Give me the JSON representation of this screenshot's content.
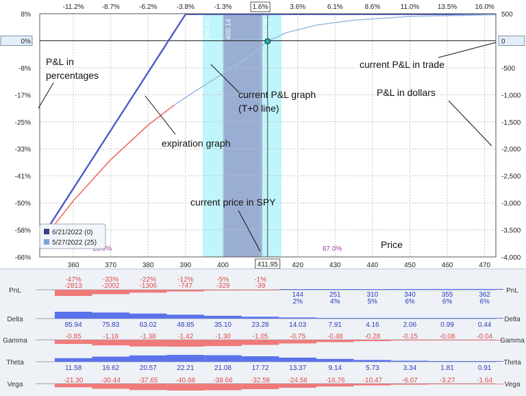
{
  "chart_data": {
    "type": "line",
    "top_axis_ticks": [
      "-11.2%",
      "-8.7%",
      "-6.2%",
      "-3.8%",
      "-1.3%",
      "1.6%",
      "3.6%",
      "6.1%",
      "8.6%",
      "11.0%",
      "13.5%",
      "16.0%"
    ],
    "highlighted_top_tick": "1.6%",
    "xlabel": "Price",
    "x_ticks": [
      360,
      370,
      380,
      390,
      400,
      410,
      420,
      430,
      440,
      450,
      460,
      470
    ],
    "xlim": [
      351,
      473
    ],
    "current_price": 411.95,
    "current_price_label": "411.95",
    "left_axis": {
      "ticks": [
        "8%",
        "0%",
        "-8%",
        "-17%",
        "-25%",
        "-33%",
        "-41%",
        "-50%",
        "-58%",
        "-66%"
      ],
      "highlighted": "0%"
    },
    "right_axis": {
      "ticks": [
        "500",
        "0",
        "-500",
        "-1,000",
        "-1,500",
        "-2,000",
        "-2,500",
        "-3,000",
        "-3,500",
        "-4,000"
      ],
      "highlighted": "0",
      "ylim": [
        -4000,
        500
      ]
    },
    "strike_labels": [
      "394.57",
      "400.14",
      "410.48",
      "415.65"
    ],
    "probability_labels": [
      "13.0%",
      "87.0%"
    ],
    "series": [
      {
        "name": "6/21/2022 (0)",
        "color": "#4e58cc",
        "x": [
          351,
          390,
          473
        ],
        "y": [
          -3700,
          490,
          490
        ]
      },
      {
        "name": "5/27/2022 (25)",
        "color": "#ef6a6a",
        "upper_color": "#9ebde4",
        "x": [
          351,
          360,
          370,
          380,
          387,
          392,
          397,
          402,
          407,
          411.95,
          417,
          425,
          435,
          450,
          473
        ],
        "y": [
          -3750,
          -2960,
          -2200,
          -1560,
          -1190,
          -960,
          -740,
          -520,
          -290,
          -10,
          150,
          290,
          380,
          450,
          480
        ]
      }
    ],
    "annotations": {
      "pl_percent": "P&L in\npercentages",
      "current_trade": "current P&L in trade",
      "tplus0": "current P&L graph\n(T+0 line)",
      "pl_dollars": "P&L in dollars",
      "expiration": "expiration graph",
      "current_price": "current price in SPY",
      "price_word": "Price"
    }
  },
  "greeks": {
    "prices": [
      360,
      370,
      380,
      390,
      400,
      410,
      420,
      430,
      440,
      450,
      460,
      470
    ],
    "rows": [
      {
        "label": "PnL",
        "kind": "pnl",
        "values": [
          -2813,
          -2002,
          -1306,
          -747,
          -329,
          -39,
          144,
          251,
          310,
          340,
          355,
          362
        ],
        "pct": [
          "-47%",
          "-33%",
          "-22%",
          "-12%",
          "-5%",
          "-1%",
          "2%",
          "4%",
          "5%",
          "6%",
          "6%",
          "6%"
        ],
        "texts": [
          "-2813",
          "-2002",
          "-1306",
          "-747",
          "-329",
          "-39",
          "144",
          "251",
          "310",
          "340",
          "355",
          "362"
        ]
      },
      {
        "label": "Delta",
        "kind": "pos",
        "values": [
          85.94,
          75.83,
          63.02,
          48.85,
          35.1,
          23.28,
          14.03,
          7.91,
          4.16,
          2.06,
          0.99,
          0.44
        ],
        "texts": [
          "85.94",
          "75.83",
          "63.02",
          "48.85",
          "35.10",
          "23.28",
          "14.03",
          "7.91",
          "4.16",
          "2.06",
          "0.99",
          "0.44"
        ]
      },
      {
        "label": "Gamma",
        "kind": "neg",
        "values": [
          -0.85,
          -1.16,
          -1.38,
          -1.42,
          -1.3,
          -1.05,
          -0.75,
          -0.48,
          -0.28,
          -0.15,
          -0.08,
          -0.04
        ],
        "texts": [
          "-0.85",
          "-1.16",
          "-1.38",
          "-1.42",
          "-1.30",
          "-1.05",
          "-0.75",
          "-0.48",
          "-0.28",
          "-0.15",
          "-0.08",
          "-0.04"
        ]
      },
      {
        "label": "Theta",
        "kind": "pos",
        "values": [
          11.58,
          16.62,
          20.57,
          22.21,
          21.08,
          17.72,
          13.37,
          9.14,
          5.73,
          3.34,
          1.81,
          0.91
        ],
        "texts": [
          "11.58",
          "16.62",
          "20.57",
          "22.21",
          "21.08",
          "17.72",
          "13.37",
          "9.14",
          "5.73",
          "3.34",
          "1.81",
          "0.91"
        ]
      },
      {
        "label": "Vega",
        "kind": "neg",
        "values": [
          -21.3,
          -30.44,
          -37.65,
          -40.68,
          -38.66,
          -32.58,
          -24.56,
          -16.76,
          -10.47,
          -6.07,
          -3.27,
          -1.64
        ],
        "texts": [
          "-21.30",
          "-30.44",
          "-37.65",
          "-40.68",
          "-38.66",
          "-32.58",
          "-24.56",
          "-16.76",
          "-10.47",
          "-6.07",
          "-3.27",
          "-1.64"
        ]
      }
    ]
  },
  "colors": {
    "expiration": "#4e58cc",
    "tplus0_lower": "#ef6a6a",
    "tplus0_upper": "#9ebde4",
    "band_light": "#bff5fb",
    "band_dark": "#9aaed3",
    "positive_bar": "#5a72ea",
    "negative_bar": "#ef7a7a"
  }
}
